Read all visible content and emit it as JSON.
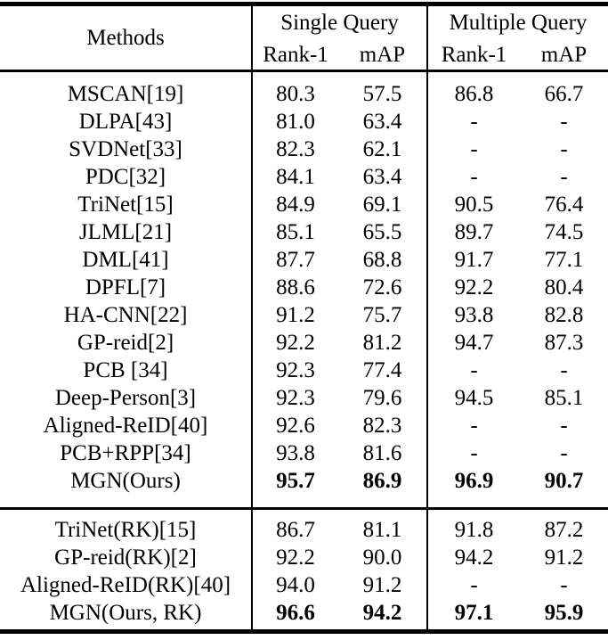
{
  "page": {
    "background_color": "#ffffff",
    "text_color": "#000000",
    "rule_color": "#000000"
  },
  "table": {
    "header": {
      "methods_label": "Methods",
      "groups": [
        {
          "label": "Single Query",
          "sub": [
            "Rank-1",
            "mAP"
          ]
        },
        {
          "label": "Multiple Query",
          "sub": [
            "Rank-1",
            "mAP"
          ]
        }
      ]
    },
    "missing_value_symbol": "-",
    "sections": [
      {
        "rows": [
          {
            "method": "MSCAN[19]",
            "values": [
              "80.3",
              "57.5",
              "86.8",
              "66.7"
            ],
            "bold_values": false
          },
          {
            "method": "DLPA[43]",
            "values": [
              "81.0",
              "63.4",
              "-",
              "-"
            ],
            "bold_values": false
          },
          {
            "method": "SVDNet[33]",
            "values": [
              "82.3",
              "62.1",
              "-",
              "-"
            ],
            "bold_values": false
          },
          {
            "method": "PDC[32]",
            "values": [
              "84.1",
              "63.4",
              "-",
              "-"
            ],
            "bold_values": false
          },
          {
            "method": "TriNet[15]",
            "values": [
              "84.9",
              "69.1",
              "90.5",
              "76.4"
            ],
            "bold_values": false
          },
          {
            "method": "JLML[21]",
            "values": [
              "85.1",
              "65.5",
              "89.7",
              "74.5"
            ],
            "bold_values": false
          },
          {
            "method": "DML[41]",
            "values": [
              "87.7",
              "68.8",
              "91.7",
              "77.1"
            ],
            "bold_values": false
          },
          {
            "method": "DPFL[7]",
            "values": [
              "88.6",
              "72.6",
              "92.2",
              "80.4"
            ],
            "bold_values": false
          },
          {
            "method": "HA-CNN[22]",
            "values": [
              "91.2",
              "75.7",
              "93.8",
              "82.8"
            ],
            "bold_values": false
          },
          {
            "method": "GP-reid[2]",
            "values": [
              "92.2",
              "81.2",
              "94.7",
              "87.3"
            ],
            "bold_values": false
          },
          {
            "method": "PCB [34]",
            "values": [
              "92.3",
              "77.4",
              "-",
              "-"
            ],
            "bold_values": false
          },
          {
            "method": "Deep-Person[3]",
            "values": [
              "92.3",
              "79.6",
              "94.5",
              "85.1"
            ],
            "bold_values": false
          },
          {
            "method": "Aligned-ReID[40]",
            "values": [
              "92.6",
              "82.3",
              "-",
              "-"
            ],
            "bold_values": false
          },
          {
            "method": "PCB+RPP[34]",
            "values": [
              "93.8",
              "81.6",
              "-",
              "-"
            ],
            "bold_values": false
          },
          {
            "method": "MGN(Ours)",
            "values": [
              "95.7",
              "86.9",
              "96.9",
              "90.7"
            ],
            "bold_values": true
          }
        ]
      },
      {
        "rows": [
          {
            "method": "TriNet(RK)[15]",
            "values": [
              "86.7",
              "81.1",
              "91.8",
              "87.2"
            ],
            "bold_values": false
          },
          {
            "method": "GP-reid(RK)[2]",
            "values": [
              "92.2",
              "90.0",
              "94.2",
              "91.2"
            ],
            "bold_values": false
          },
          {
            "method": "Aligned-ReID(RK)[40]",
            "values": [
              "94.0",
              "91.2",
              "-",
              "-"
            ],
            "bold_values": false
          },
          {
            "method": "MGN(Ours, RK)",
            "values": [
              "96.6",
              "94.2",
              "97.1",
              "95.9"
            ],
            "bold_values": true
          }
        ]
      }
    ]
  }
}
